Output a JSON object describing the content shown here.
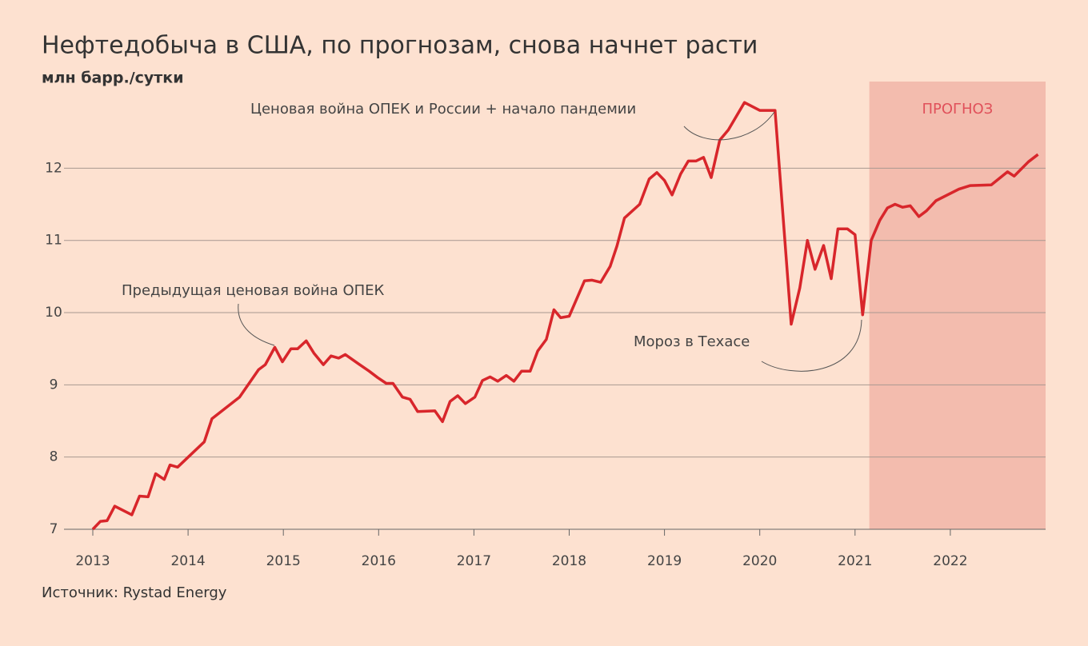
{
  "chart_data": {
    "type": "line",
    "title": "Нефтедобыча в США, по прогнозам, снова начнет расти",
    "subtitle": "млн барр./сутки",
    "source": "Источник: Rystad Energy",
    "annotations": [
      "Предыдущая ценовая война ОПЕК",
      "Ценовая война ОПЕК и России + начало пандемии",
      "Мороз в Техасе"
    ],
    "forecast": {
      "label": "ПРОГНОЗ",
      "start": 2021.15,
      "end": 2023,
      "color": "#f3bcae"
    },
    "x": [
      2013.0,
      2013.08,
      2013.15,
      2013.23,
      2013.41,
      2013.49,
      2013.58,
      2013.66,
      2013.75,
      2013.81,
      2013.89,
      2014.17,
      2014.25,
      2014.54,
      2014.74,
      2014.81,
      2014.91,
      2014.99,
      2015.08,
      2015.15,
      2015.24,
      2015.32,
      2015.42,
      2015.5,
      2015.58,
      2015.65,
      2015.79,
      2015.9,
      2015.99,
      2016.08,
      2016.15,
      2016.25,
      2016.33,
      2016.41,
      2016.59,
      2016.67,
      2016.75,
      2016.83,
      2016.91,
      2017.01,
      2017.09,
      2017.17,
      2017.25,
      2017.34,
      2017.42,
      2017.5,
      2017.59,
      2017.67,
      2017.76,
      2017.84,
      2017.91,
      2018.0,
      2018.16,
      2018.24,
      2018.33,
      2018.43,
      2018.5,
      2018.58,
      2018.74,
      2018.84,
      2018.92,
      2019.0,
      2019.08,
      2019.17,
      2019.25,
      2019.33,
      2019.41,
      2019.49,
      2019.58,
      2019.67,
      2019.84,
      2020.0,
      2020.16,
      2020.33,
      2020.42,
      2020.5,
      2020.58,
      2020.67,
      2020.75,
      2020.82,
      2020.92,
      2021.0,
      2021.08,
      2021.17,
      2021.26,
      2021.34,
      2021.42,
      2021.5,
      2021.58,
      2021.67,
      2021.75,
      2021.85,
      2022.09,
      2022.21,
      2022.43,
      2022.6,
      2022.67,
      2022.82,
      2022.92
    ],
    "series": [
      {
        "name": "Нефтедобыча",
        "color": "#d8262b",
        "values": [
          7.0,
          7.11,
          7.12,
          7.32,
          7.2,
          7.46,
          7.45,
          7.77,
          7.69,
          7.89,
          7.86,
          8.21,
          8.53,
          8.83,
          9.21,
          9.28,
          9.52,
          9.32,
          9.5,
          9.5,
          9.61,
          9.44,
          9.28,
          9.4,
          9.37,
          9.42,
          9.29,
          9.19,
          9.1,
          9.02,
          9.02,
          8.83,
          8.8,
          8.63,
          8.64,
          8.49,
          8.77,
          8.85,
          8.74,
          8.83,
          9.06,
          9.11,
          9.05,
          9.13,
          9.05,
          9.19,
          9.19,
          9.47,
          9.63,
          10.04,
          9.93,
          9.95,
          10.44,
          10.45,
          10.42,
          10.64,
          10.92,
          11.31,
          11.5,
          11.85,
          11.94,
          11.83,
          11.63,
          11.92,
          12.1,
          12.1,
          12.15,
          11.87,
          12.39,
          12.53,
          12.91,
          12.8,
          12.8,
          9.84,
          10.34,
          11.0,
          10.6,
          10.93,
          10.47,
          11.16,
          11.16,
          11.08,
          9.97,
          11.0,
          11.28,
          11.45,
          11.5,
          11.46,
          11.48,
          11.33,
          11.41,
          11.55,
          11.71,
          11.76,
          11.77,
          11.95,
          11.89,
          12.09,
          12.19
        ]
      }
    ],
    "xlim": [
      2013,
      2023
    ],
    "xticks": [
      2013,
      2014,
      2015,
      2016,
      2017,
      2018,
      2019,
      2020,
      2021,
      2022
    ],
    "ylim": [
      7,
      13.2
    ],
    "yticks": [
      7,
      8,
      9,
      10,
      11,
      12
    ],
    "grid": true
  }
}
